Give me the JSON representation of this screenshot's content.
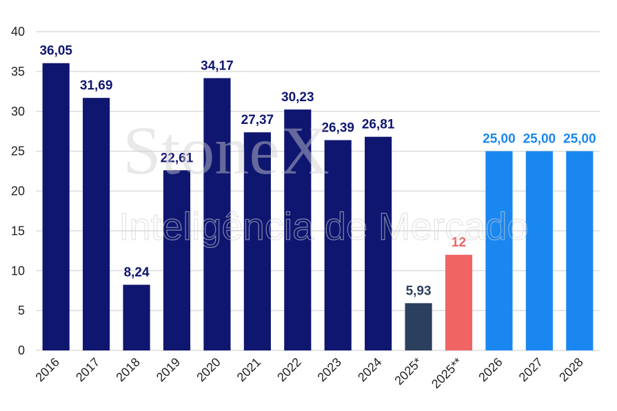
{
  "chart_data": {
    "type": "bar",
    "categories": [
      "2016",
      "2017",
      "2018",
      "2019",
      "2020",
      "2021",
      "2022",
      "2023",
      "2024",
      "2025*",
      "2025**",
      "2026",
      "2027",
      "2028"
    ],
    "values": [
      36.05,
      31.69,
      8.24,
      22.61,
      34.17,
      27.37,
      30.23,
      26.39,
      26.81,
      5.93,
      12,
      25.0,
      25.0,
      25.0
    ],
    "data_labels": [
      "36,05",
      "31,69",
      "8,24",
      "22,61",
      "34,17",
      "27,37",
      "30,23",
      "26,39",
      "26,81",
      "5,93",
      "12",
      "25,00",
      "25,00",
      "25,00"
    ],
    "bar_colors": [
      "#0f1670",
      "#0f1670",
      "#0f1670",
      "#0f1670",
      "#0f1670",
      "#0f1670",
      "#0f1670",
      "#0f1670",
      "#0f1670",
      "#2b3f5f",
      "#f06464",
      "#1a87f0",
      "#1a87f0",
      "#1a87f0"
    ],
    "label_colors": [
      "#0f1670",
      "#0f1670",
      "#0f1670",
      "#0f1670",
      "#0f1670",
      "#0f1670",
      "#0f1670",
      "#0f1670",
      "#0f1670",
      "#2b3f5f",
      "#f06464",
      "#1a87f0",
      "#1a87f0",
      "#1a87f0"
    ],
    "y_ticks": [
      "0",
      "5",
      "10",
      "15",
      "20",
      "25",
      "30",
      "35",
      "40"
    ],
    "ylim": [
      0,
      40
    ],
    "grid": true,
    "title": "",
    "xlabel": "",
    "ylabel": ""
  },
  "watermark": {
    "brand": "StoneX",
    "tagline": "Inteligência de Mercado"
  }
}
